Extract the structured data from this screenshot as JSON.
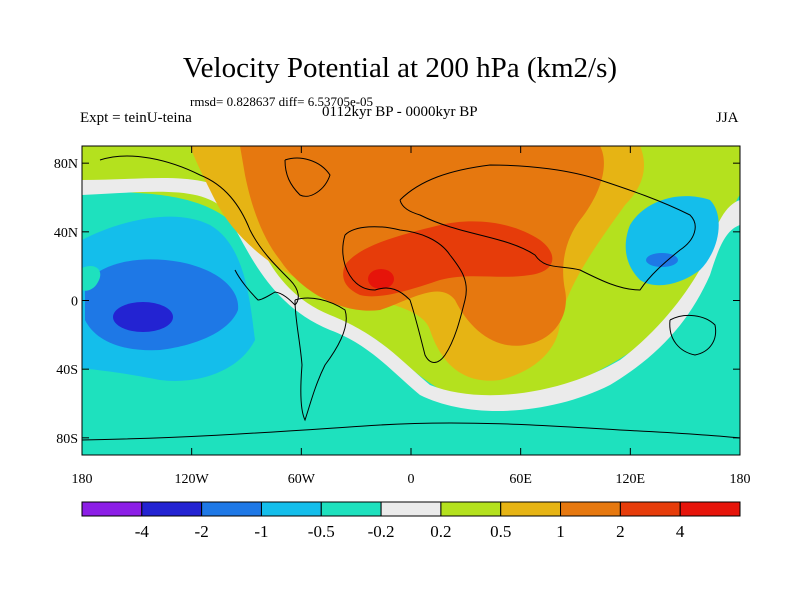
{
  "title": "Velocity Potential at 200 hPa (km2/s)",
  "stats": "rmsd= 0.828637 diff= 6.53705e-05",
  "left_label": "Expt = teinU-teina",
  "center_label": "0112kyr BP - 0000kyr BP",
  "right_label": "JJA",
  "map": {
    "projection": "cylindrical equidistant",
    "lon_range": [
      -180,
      180
    ],
    "lat_range": [
      -90,
      90
    ],
    "lat_ticks": [
      {
        "value": 80,
        "label": "80N"
      },
      {
        "value": 40,
        "label": "40N"
      },
      {
        "value": 0,
        "label": "0"
      },
      {
        "value": -40,
        "label": "40S"
      },
      {
        "value": -80,
        "label": "80S"
      }
    ],
    "lon_ticks": [
      {
        "value": -180,
        "label": "180"
      },
      {
        "value": -120,
        "label": "120W"
      },
      {
        "value": -60,
        "label": "60W"
      },
      {
        "value": 0,
        "label": "0"
      },
      {
        "value": 60,
        "label": "60E"
      },
      {
        "value": 120,
        "label": "120E"
      },
      {
        "value": 180,
        "label": "180"
      }
    ]
  },
  "colorbar": {
    "labels": [
      "-4",
      "-2",
      "-1",
      "-0.5",
      "-0.2",
      "0.2",
      "0.5",
      "1",
      "2",
      "4"
    ],
    "colors": [
      "#8c1ee6",
      "#2323d2",
      "#1e78e6",
      "#14beeb",
      "#1ee1be",
      "#ebebeb",
      "#b4e11e",
      "#e6b414",
      "#e6780f",
      "#e63c0a",
      "#e6140a"
    ]
  }
}
